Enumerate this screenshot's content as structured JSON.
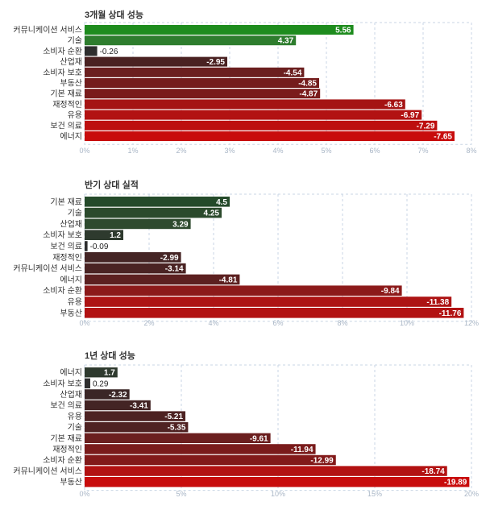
{
  "chart_data": [
    {
      "type": "bar",
      "orientation": "horizontal",
      "title": "3개월 상대 성능",
      "categories": [
        "커뮤니케이션 서비스",
        "기술",
        "소비자 순환",
        "산업재",
        "소비자 보호",
        "부동산",
        "기본 재료",
        "재정적인",
        "유용",
        "보건 의료",
        "에너지"
      ],
      "values": [
        5.56,
        4.37,
        -0.26,
        -2.95,
        -4.54,
        -4.85,
        -4.87,
        -6.63,
        -6.97,
        -7.29,
        -7.65
      ],
      "value_labels": [
        "5.56",
        "4.37",
        "-0.26",
        "-2.95",
        "-4.54",
        "-4.85",
        "-4.87",
        "-6.63",
        "-6.97",
        "-7.29",
        "-7.65"
      ],
      "xticks": [
        "0%",
        "1%",
        "2%",
        "3%",
        "4%",
        "5%",
        "6%",
        "7%",
        "8%"
      ],
      "xlim": [
        0,
        8
      ],
      "bar_colors": [
        "#1e8c1e",
        "#2e7d2e",
        "#2e2e2e",
        "#4a2222",
        "#6b1f1f",
        "#741c1c",
        "#7a1b1b",
        "#a51414",
        "#b21212",
        "#bd0f0f",
        "#c80c0c"
      ],
      "grid": "vertical dashed"
    },
    {
      "type": "bar",
      "orientation": "horizontal",
      "title": "반기 상대 실적",
      "categories": [
        "기본 재료",
        "기술",
        "산업재",
        "소비자 보호",
        "보건 의료",
        "재정적인",
        "커뮤니케이션 서비스",
        "에너지",
        "소비자 순환",
        "유용",
        "부동산"
      ],
      "values": [
        4.5,
        4.25,
        3.29,
        1.2,
        -0.09,
        -2.99,
        -3.14,
        -4.81,
        -9.84,
        -11.38,
        -11.76
      ],
      "value_labels": [
        "4.5",
        "4.25",
        "3.29",
        "1.2",
        "-0.09",
        "-2.99",
        "-3.14",
        "-4.81",
        "-9.84",
        "-11.38",
        "-11.76"
      ],
      "xticks": [
        "0%",
        "2%",
        "4%",
        "6%",
        "8%",
        "10%",
        "12%"
      ],
      "xlim": [
        0,
        12
      ],
      "bar_colors": [
        "#244a2a",
        "#2b4a2c",
        "#2e4a2e",
        "#2e3a2e",
        "#2e2e2e",
        "#452525",
        "#4a2323",
        "#5c2020",
        "#8c1a1a",
        "#ad1414",
        "#b21212"
      ],
      "grid": "vertical dashed"
    },
    {
      "type": "bar",
      "orientation": "horizontal",
      "title": "1년 상대 성능",
      "categories": [
        "에너지",
        "소비자 보호",
        "산업재",
        "보건 의료",
        "유용",
        "기술",
        "기본 재료",
        "재정적인",
        "소비자 순환",
        "커뮤니케이션 서비스",
        "부동산"
      ],
      "values": [
        1.7,
        0.29,
        -2.32,
        -3.41,
        -5.21,
        -5.35,
        -9.61,
        -11.94,
        -12.99,
        -18.74,
        -19.89
      ],
      "value_labels": [
        "1.7",
        "0.29",
        "-2.32",
        "-3.41",
        "-5.21",
        "-5.35",
        "-9.61",
        "-11.94",
        "-12.99",
        "-18.74",
        "-19.89"
      ],
      "xticks": [
        "0%",
        "5%",
        "10%",
        "15%",
        "20%"
      ],
      "xlim": [
        0,
        20
      ],
      "bar_colors": [
        "#2e3a2e",
        "#2e2e2e",
        "#3a2626",
        "#432424",
        "#4d2222",
        "#4f2222",
        "#6b1f1f",
        "#7a1b1b",
        "#821a1a",
        "#b21212",
        "#c80c0c"
      ],
      "grid": "vertical dashed"
    }
  ]
}
